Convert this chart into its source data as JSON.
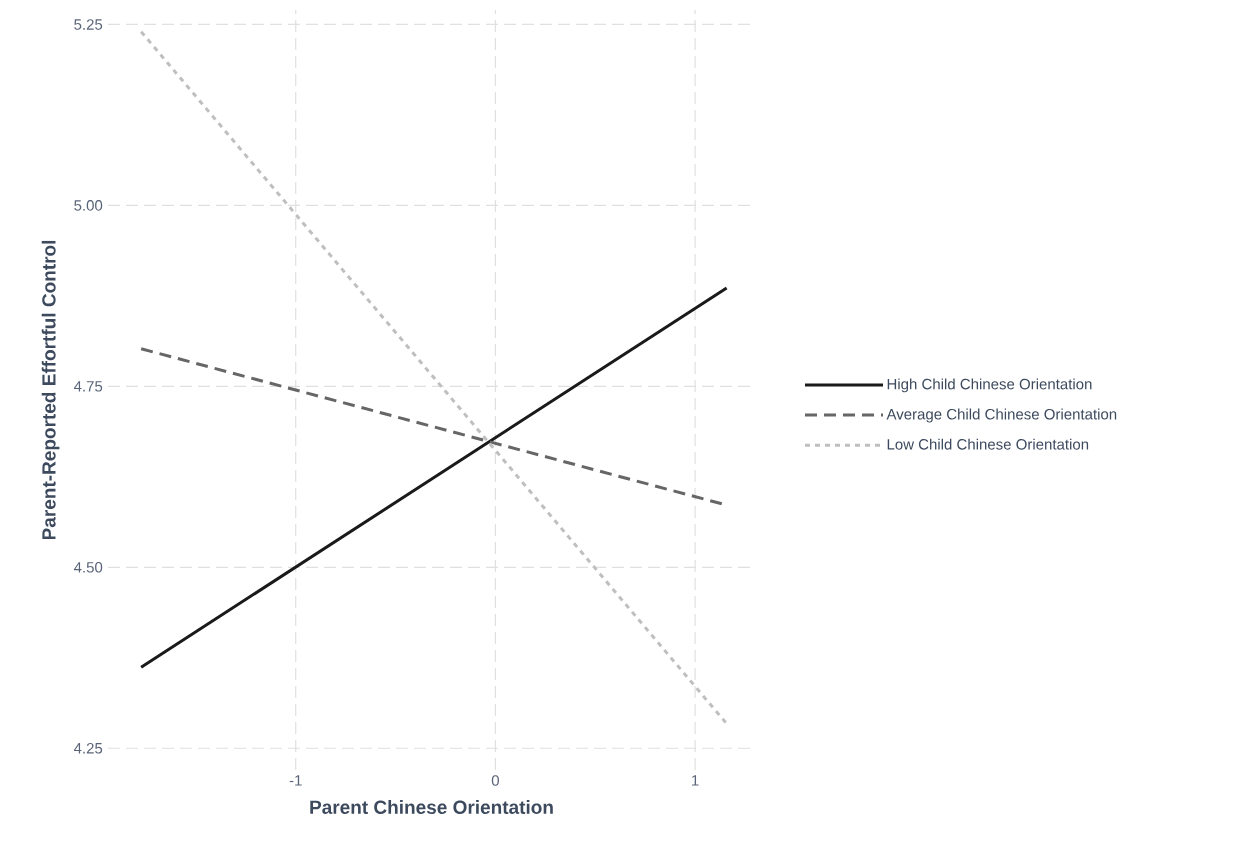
{
  "chart_data": {
    "type": "line",
    "xlabel": "Parent Chinese Orientation",
    "ylabel": "Parent-Reported Effortful Control",
    "x": [
      -1.774,
      1.158
    ],
    "series": [
      {
        "name": "High Child Chinese Orientation",
        "color": "#1a1a1a",
        "line_style": "solid",
        "values": [
          4.362,
          4.886
        ]
      },
      {
        "name": "Average Child Chinese Orientation",
        "color": "#666666",
        "line_style": "dashed",
        "values": [
          4.802,
          4.586
        ]
      },
      {
        "name": "Low Child Chinese Orientation",
        "color": "#bfbfbf",
        "line_style": "dotted",
        "values": [
          5.24,
          4.284
        ]
      }
    ],
    "xlim": [
      -1.94,
      1.3
    ],
    "ylim": [
      4.22,
      5.27
    ],
    "xticks": [
      -1,
      0,
      1
    ],
    "yticks": [
      {
        "value": 4.25,
        "label": "4.25"
      },
      {
        "value": 4.5,
        "label": "4.50"
      },
      {
        "value": 4.75,
        "label": "4.75"
      },
      {
        "value": 5,
        "label": "5.00"
      },
      {
        "value": 5.25,
        "label": "5.25"
      }
    ],
    "grid": true,
    "legend": "right",
    "marker": "none"
  }
}
